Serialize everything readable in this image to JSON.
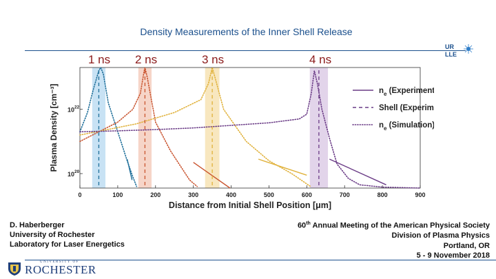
{
  "header": {
    "title": "Density Measurements of the Inner Shell Release",
    "logo_text_top": "UR",
    "logo_text_bottom": "LLE"
  },
  "time_labels": [
    "1 ns",
    "2 ns",
    "3 ns",
    "4 ns"
  ],
  "chart_data": {
    "type": "line",
    "xlabel": "Distance from Initial Shell Position [μm]",
    "ylabel": "Plasma Density [cm⁻³]",
    "xlim": [
      0,
      900
    ],
    "x_ticks": [
      "0",
      "100",
      "200",
      "300",
      "400",
      "500",
      "600",
      "700",
      "800",
      "900"
    ],
    "ylim_log10": [
      19.55,
      23.3
    ],
    "y_ticks": [
      {
        "exp": 20,
        "label": "10"
      },
      {
        "exp": 22,
        "label": "10"
      }
    ],
    "grid": false,
    "legend_position": "right",
    "legend": [
      {
        "label": "n",
        "sub": "e",
        "suffix": " (Experiment)",
        "style": "solid"
      },
      {
        "label": "Shell (Experiment)",
        "sub": "",
        "suffix": "",
        "style": "dashed"
      },
      {
        "label": "n",
        "sub": "e",
        "suffix": " (Simulation)",
        "style": "dotted"
      }
    ],
    "colors": [
      "#1f6f9a",
      "#c9542f",
      "#e0b13a",
      "#6a3b86"
    ],
    "band_colors": [
      "#c8e2f4",
      "#f6d5c8",
      "#f8e7bf",
      "#e2d4ea"
    ],
    "shell_bands": [
      {
        "center": 50,
        "width": 35
      },
      {
        "center": 172,
        "width": 35
      },
      {
        "center": 350,
        "width": 38
      },
      {
        "center": 632,
        "width": 48
      }
    ],
    "experiment": [
      {
        "x": [
          125,
          138
        ],
        "log10_y": [
          20.45,
          19.8
        ]
      },
      {
        "x": [
          300,
          397
        ],
        "log10_y": [
          20.35,
          19.55
        ]
      },
      {
        "x": [
          472,
          600
        ],
        "log10_y": [
          20.45,
          19.95
        ]
      },
      {
        "x": [
          660,
          810
        ],
        "log10_y": [
          20.45,
          19.65
        ]
      }
    ],
    "simulation": [
      {
        "x": [
          0,
          20,
          35,
          50,
          55,
          62,
          75,
          100,
          125,
          140,
          150
        ],
        "log10_y": [
          21.3,
          21.9,
          22.6,
          23.2,
          23.3,
          23.1,
          22.2,
          21.3,
          20.4,
          19.9,
          19.6
        ]
      },
      {
        "x": [
          0,
          100,
          140,
          160,
          170,
          172,
          178,
          200,
          240,
          290,
          310
        ],
        "log10_y": [
          21.0,
          21.6,
          22.0,
          22.5,
          23.2,
          23.3,
          23.0,
          21.6,
          20.7,
          19.8,
          19.6
        ]
      },
      {
        "x": [
          0,
          150,
          250,
          320,
          340,
          350,
          357,
          380,
          440,
          500,
          560,
          610
        ],
        "log10_y": [
          21.2,
          21.55,
          21.9,
          22.3,
          22.8,
          23.3,
          23.0,
          22.0,
          21.0,
          20.4,
          20.0,
          19.6
        ]
      },
      {
        "x": [
          0,
          100,
          200,
          300,
          400,
          500,
          580,
          600,
          612,
          620,
          628,
          640,
          660,
          680,
          710,
          740,
          800,
          900
        ],
        "log10_y": [
          21.3,
          21.33,
          21.37,
          21.42,
          21.5,
          21.58,
          21.7,
          21.85,
          22.5,
          23.2,
          22.8,
          22.0,
          21.1,
          20.3,
          19.85,
          19.65,
          19.58,
          19.55
        ]
      }
    ]
  },
  "author": {
    "name": "D. Haberberger",
    "affiliation1": "University of Rochester",
    "affiliation2": "Laboratory for Laser Energetics"
  },
  "meeting": {
    "number": "60",
    "ordinal": "th",
    "title": " Annual Meeting of the American Physical Society",
    "division": "Division of Plasma Physics",
    "location": "Portland, OR",
    "dates": "5 - 9 November 2018"
  },
  "footer": {
    "university_small": "UNIVERSITY OF",
    "university_name": "ROCHESTER"
  }
}
